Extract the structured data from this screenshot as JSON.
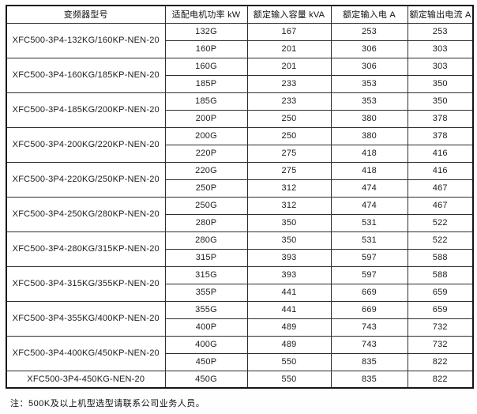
{
  "page": {
    "background": "#fefefe",
    "border_color": "#2e2e2e",
    "text_color": "#1c1c1c"
  },
  "table": {
    "headers": [
      "变频器型号",
      "适配电机功率 kW",
      "额定输入容量 kVA",
      "额定输入电 A",
      "额定输出电流 A"
    ],
    "groups": [
      {
        "model": "XFC500-3P4-132KG/160KP-NEN-20",
        "rows": [
          [
            "132G",
            "167",
            "253",
            "253"
          ],
          [
            "160P",
            "201",
            "306",
            "303"
          ]
        ]
      },
      {
        "model": "XFC500-3P4-160KG/185KP-NEN-20",
        "rows": [
          [
            "160G",
            "201",
            "306",
            "303"
          ],
          [
            "185P",
            "233",
            "353",
            "350"
          ]
        ]
      },
      {
        "model": "XFC500-3P4-185KG/200KP-NEN-20",
        "rows": [
          [
            "185G",
            "233",
            "353",
            "350"
          ],
          [
            "200P",
            "250",
            "380",
            "378"
          ]
        ]
      },
      {
        "model": "XFC500-3P4-200KG/220KP-NEN-20",
        "rows": [
          [
            "200G",
            "250",
            "380",
            "378"
          ],
          [
            "220P",
            "275",
            "418",
            "416"
          ]
        ]
      },
      {
        "model": "XFC500-3P4-220KG/250KP-NEN-20",
        "rows": [
          [
            "220G",
            "275",
            "418",
            "416"
          ],
          [
            "250P",
            "312",
            "474",
            "467"
          ]
        ]
      },
      {
        "model": "XFC500-3P4-250KG/280KP-NEN-20",
        "rows": [
          [
            "250G",
            "312",
            "474",
            "467"
          ],
          [
            "280P",
            "350",
            "531",
            "522"
          ]
        ]
      },
      {
        "model": "XFC500-3P4-280KG/315KP-NEN-20",
        "rows": [
          [
            "280G",
            "350",
            "531",
            "522"
          ],
          [
            "315P",
            "393",
            "597",
            "588"
          ]
        ]
      },
      {
        "model": "XFC500-3P4-315KG/355KP-NEN-20",
        "rows": [
          [
            "315G",
            "393",
            "597",
            "588"
          ],
          [
            "355P",
            "441",
            "669",
            "659"
          ]
        ]
      },
      {
        "model": "XFC500-3P4-355KG/400KP-NEN-20",
        "rows": [
          [
            "355G",
            "441",
            "669",
            "659"
          ],
          [
            "400P",
            "489",
            "743",
            "732"
          ]
        ]
      },
      {
        "model": "XFC500-3P4-400KG/450KP-NEN-20",
        "rows": [
          [
            "400G",
            "489",
            "743",
            "732"
          ],
          [
            "450P",
            "550",
            "835",
            "822"
          ]
        ]
      },
      {
        "model": "XFC500-3P4-450KG-NEN-20",
        "rows": [
          [
            "450G",
            "550",
            "835",
            "822"
          ]
        ]
      }
    ]
  },
  "note": "注：500K及以上机型选型请联系公司业务人员。",
  "chart_data": {
    "type": "table",
    "title": "",
    "columns": [
      "变频器型号",
      "适配电机功率 kW",
      "额定输入容量 kVA",
      "额定输入电 A",
      "额定输出电流 A"
    ],
    "rows": [
      [
        "XFC500-3P4-132KG/160KP-NEN-20",
        "132G",
        167,
        253,
        253
      ],
      [
        "XFC500-3P4-132KG/160KP-NEN-20",
        "160P",
        201,
        306,
        303
      ],
      [
        "XFC500-3P4-160KG/185KP-NEN-20",
        "160G",
        201,
        306,
        303
      ],
      [
        "XFC500-3P4-160KG/185KP-NEN-20",
        "185P",
        233,
        353,
        350
      ],
      [
        "XFC500-3P4-185KG/200KP-NEN-20",
        "185G",
        233,
        353,
        350
      ],
      [
        "XFC500-3P4-185KG/200KP-NEN-20",
        "200P",
        250,
        380,
        378
      ],
      [
        "XFC500-3P4-200KG/220KP-NEN-20",
        "200G",
        250,
        380,
        378
      ],
      [
        "XFC500-3P4-200KG/220KP-NEN-20",
        "220P",
        275,
        418,
        416
      ],
      [
        "XFC500-3P4-220KG/250KP-NEN-20",
        "220G",
        275,
        418,
        416
      ],
      [
        "XFC500-3P4-220KG/250KP-NEN-20",
        "250P",
        312,
        474,
        467
      ],
      [
        "XFC500-3P4-250KG/280KP-NEN-20",
        "250G",
        312,
        474,
        467
      ],
      [
        "XFC500-3P4-250KG/280KP-NEN-20",
        "280P",
        350,
        531,
        522
      ],
      [
        "XFC500-3P4-280KG/315KP-NEN-20",
        "280G",
        350,
        531,
        522
      ],
      [
        "XFC500-3P4-280KG/315KP-NEN-20",
        "315P",
        393,
        597,
        588
      ],
      [
        "XFC500-3P4-315KG/355KP-NEN-20",
        "315G",
        393,
        597,
        588
      ],
      [
        "XFC500-3P4-315KG/355KP-NEN-20",
        "355P",
        441,
        669,
        659
      ],
      [
        "XFC500-3P4-355KG/400KP-NEN-20",
        "355G",
        441,
        669,
        659
      ],
      [
        "XFC500-3P4-355KG/400KP-NEN-20",
        "400P",
        489,
        743,
        732
      ],
      [
        "XFC500-3P4-400KG/450KP-NEN-20",
        "400G",
        489,
        743,
        732
      ],
      [
        "XFC500-3P4-400KG/450KP-NEN-20",
        "450P",
        550,
        835,
        822
      ],
      [
        "XFC500-3P4-450KG-NEN-20",
        "450G",
        550,
        835,
        822
      ]
    ]
  }
}
